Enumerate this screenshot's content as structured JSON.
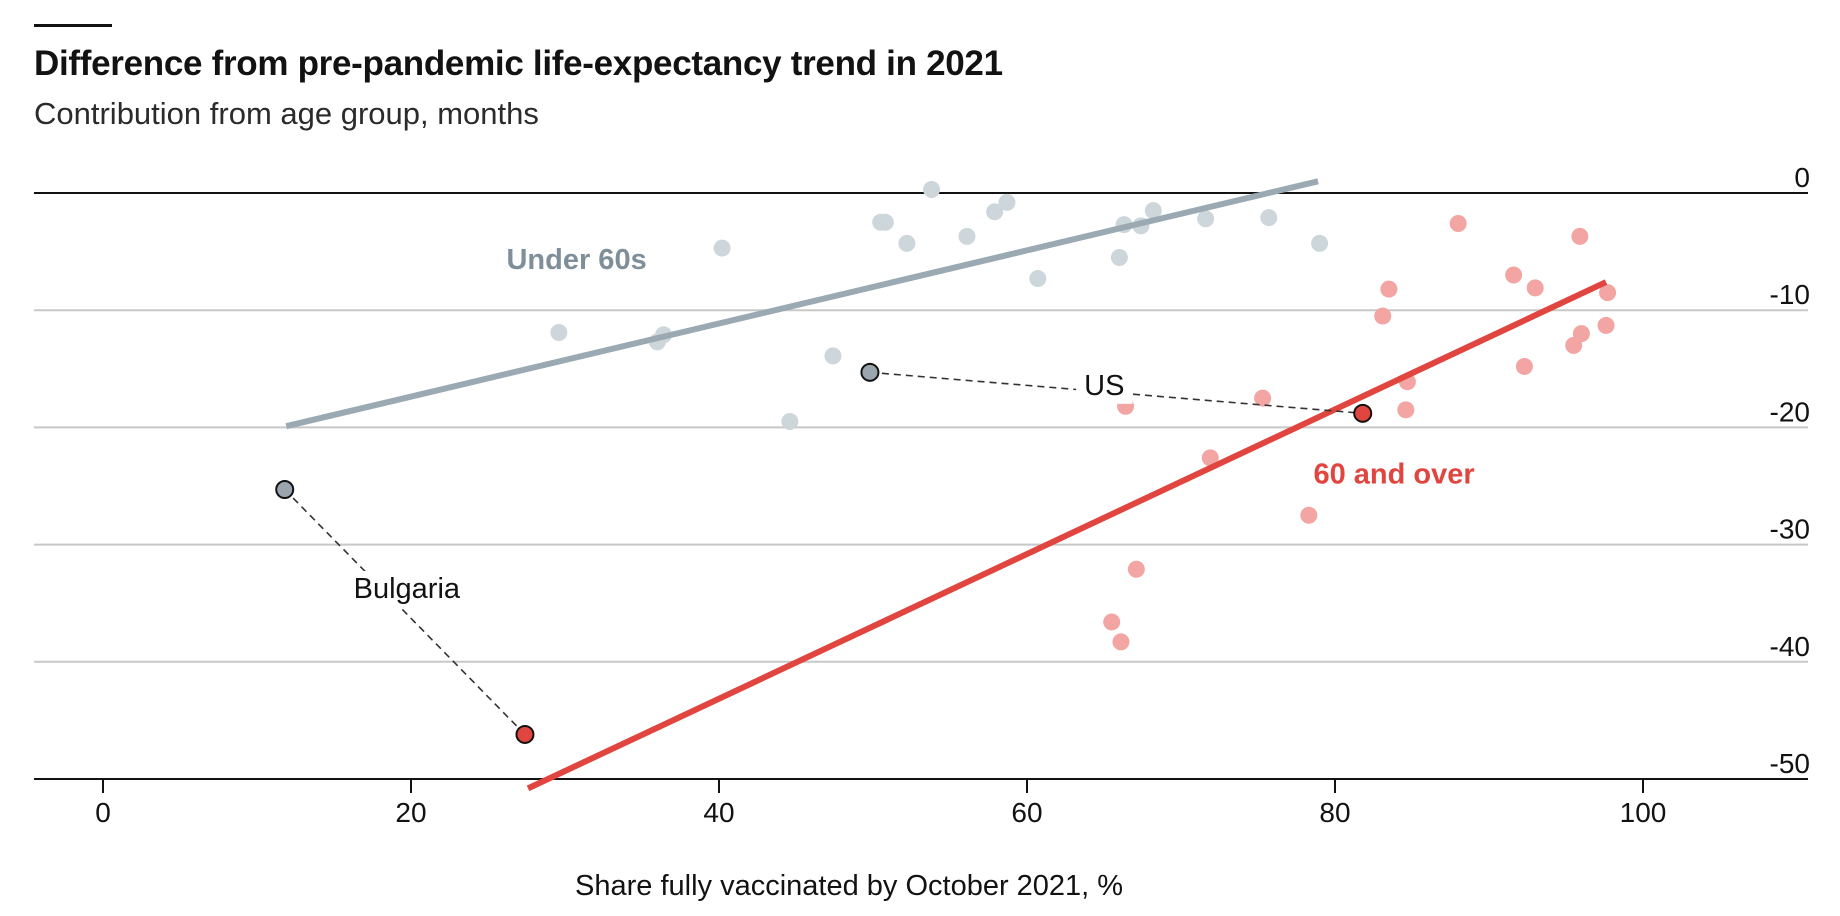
{
  "title": "Difference from pre-pandemic life-expectancy trend in 2021",
  "subtitle": "Contribution from age group, months",
  "colors": {
    "under_60s": "#9aa9b2",
    "under_60s_dots": "#cdd6da",
    "over_60": "#e0463f",
    "over_60_dots": "#f2a5a2",
    "grid": "#c8c8c8",
    "axis": "#121212"
  },
  "chart_data": {
    "type": "scatter",
    "title": "Difference from pre-pandemic life-expectancy trend in 2021",
    "subtitle": "Contribution from age group, months",
    "xlabel": "Share fully vaccinated by October 2021, %",
    "ylabel": "",
    "xlim": [
      -4,
      110
    ],
    "ylim": [
      -50,
      0
    ],
    "xticks": [
      0,
      20,
      40,
      60,
      80,
      100
    ],
    "yticks": [
      0,
      -10,
      -20,
      -30,
      -40,
      -50
    ],
    "ytick_labels": [
      "0",
      "-10",
      "-20",
      "-30",
      "-40",
      "-50"
    ],
    "grid": "horizontal",
    "series": [
      {
        "name": "Under 60s",
        "points": [
          [
            53.8,
            0.3
          ],
          [
            50.8,
            -2.5
          ],
          [
            50.5,
            -2.5
          ],
          [
            58.7,
            -0.8
          ],
          [
            57.9,
            -1.6
          ],
          [
            68.2,
            -1.5
          ],
          [
            66.3,
            -2.7
          ],
          [
            67.4,
            -2.8
          ],
          [
            71.6,
            -2.2
          ],
          [
            75.7,
            -2.1
          ],
          [
            52.2,
            -4.3
          ],
          [
            56.1,
            -3.7
          ],
          [
            40.2,
            -4.7
          ],
          [
            66.0,
            -5.5
          ],
          [
            60.7,
            -7.3
          ],
          [
            79.0,
            -4.3
          ],
          [
            29.6,
            -11.9
          ],
          [
            36.0,
            -12.7
          ],
          [
            36.4,
            -12.1
          ],
          [
            47.4,
            -13.9
          ],
          [
            44.6,
            -19.5
          ]
        ],
        "trend": [
          [
            11.9,
            -19.9
          ],
          [
            78.9,
            1.0
          ]
        ]
      },
      {
        "name": "60 and over",
        "points": [
          [
            88.0,
            -2.6
          ],
          [
            95.9,
            -3.7
          ],
          [
            91.6,
            -7.0
          ],
          [
            93.0,
            -8.1
          ],
          [
            83.5,
            -8.2
          ],
          [
            97.7,
            -8.5
          ],
          [
            83.1,
            -10.5
          ],
          [
            96.0,
            -12.0
          ],
          [
            97.6,
            -11.3
          ],
          [
            95.5,
            -13.0
          ],
          [
            92.3,
            -14.8
          ],
          [
            84.7,
            -16.1
          ],
          [
            75.3,
            -17.5
          ],
          [
            66.4,
            -18.2
          ],
          [
            84.6,
            -18.5
          ],
          [
            71.9,
            -22.6
          ],
          [
            78.3,
            -27.5
          ],
          [
            67.1,
            -32.1
          ],
          [
            65.5,
            -36.6
          ],
          [
            66.1,
            -38.3
          ]
        ],
        "trend": [
          [
            27.6,
            -50.8
          ],
          [
            97.6,
            -7.6
          ]
        ]
      }
    ],
    "highlighted": [
      {
        "name": "US",
        "under_60s": [
          49.8,
          -15.3
        ],
        "over_60": [
          81.8,
          -18.8
        ]
      },
      {
        "name": "Bulgaria",
        "under_60s": [
          11.8,
          -25.3
        ],
        "over_60": [
          27.4,
          -46.2
        ]
      }
    ],
    "series_labels": {
      "under_60s": "Under 60s",
      "over_60": "60 and over"
    }
  }
}
